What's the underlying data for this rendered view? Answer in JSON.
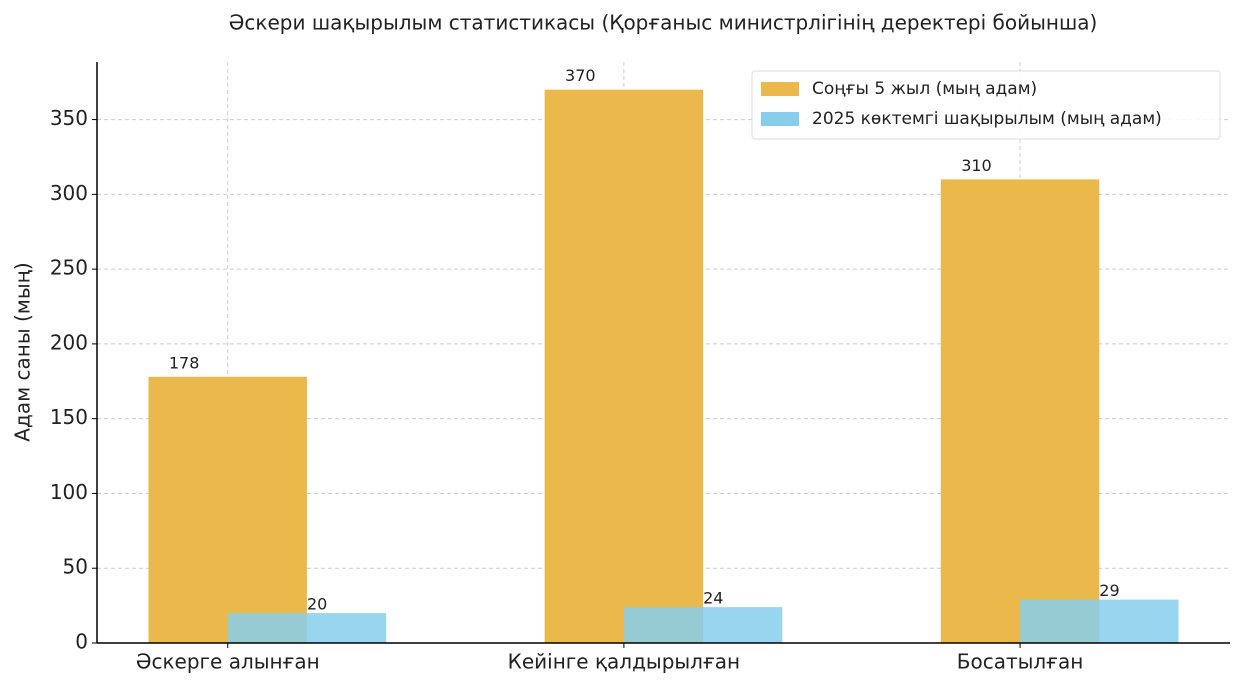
{
  "chart_data": {
    "type": "bar",
    "title": "Әскери шақырылым статистикасы (Қорғаныс министрлігінің деректері бойынша)",
    "y_label": "Адам саны (мың)",
    "categories": [
      "Әскерге алынған",
      "Кейінге қалдырылған",
      "Босатылған"
    ],
    "series": [
      {
        "name": "Соңғы 5 жыл (мың адам)",
        "color": "#ebb94b",
        "values": [
          178,
          370,
          310
        ]
      },
      {
        "name": "2025 көктемгі шақырылым (мың адам)",
        "color": "#87ceeb",
        "values": [
          20,
          24,
          29
        ]
      }
    ],
    "ylim": [
      0,
      388.5
    ],
    "yticks": [
      0,
      50,
      100,
      150,
      200,
      250,
      300,
      350
    ],
    "grid": true,
    "legend": "upper right"
  }
}
